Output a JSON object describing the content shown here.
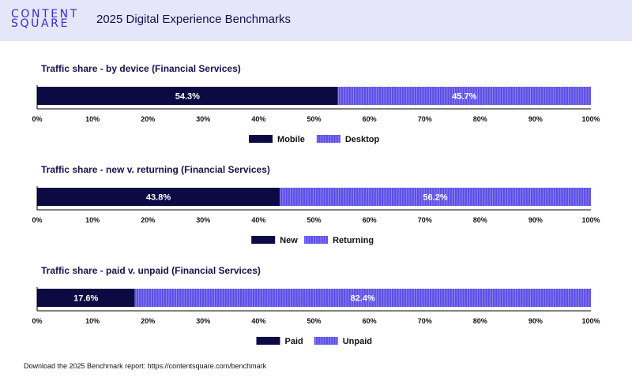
{
  "header": {
    "logo_line1": "CONTENT",
    "logo_line2": "SQUARE",
    "title": "2025 Digital Experience Benchmarks"
  },
  "colors": {
    "primary": "#0c0a42",
    "secondary": "#5b4de6",
    "stripe": "#8f86f0",
    "header_bg": "#e6e6fa",
    "brand": "#3b2ad0"
  },
  "chart_data": [
    {
      "type": "bar",
      "orientation": "horizontal-stacked-100",
      "title": "Traffic share - by device (Financial Services)",
      "series": [
        {
          "name": "Mobile",
          "values": [
            54.3
          ],
          "label": "54.3%"
        },
        {
          "name": "Desktop",
          "values": [
            45.7
          ],
          "label": "45.7%"
        }
      ],
      "xlim": [
        0,
        100
      ],
      "ticks": [
        "0%",
        "10%",
        "20%",
        "30%",
        "40%",
        "50%",
        "60%",
        "70%",
        "80%",
        "90%",
        "100%"
      ],
      "legend": "bottom-center"
    },
    {
      "type": "bar",
      "orientation": "horizontal-stacked-100",
      "title": "Traffic share - new v. returning (Financial Services)",
      "series": [
        {
          "name": "New",
          "values": [
            43.8
          ],
          "label": "43.8%"
        },
        {
          "name": "Returning",
          "values": [
            56.2
          ],
          "label": "56.2%"
        }
      ],
      "xlim": [
        0,
        100
      ],
      "ticks": [
        "0%",
        "10%",
        "20%",
        "30%",
        "40%",
        "50%",
        "60%",
        "70%",
        "80%",
        "90%",
        "100%"
      ],
      "legend": "bottom-center"
    },
    {
      "type": "bar",
      "orientation": "horizontal-stacked-100",
      "title": "Traffic share - paid v. unpaid (Financial Services)",
      "series": [
        {
          "name": "Paid",
          "values": [
            17.6
          ],
          "label": "17.6%"
        },
        {
          "name": "Unpaid",
          "values": [
            82.4
          ],
          "label": "82.4%"
        }
      ],
      "xlim": [
        0,
        100
      ],
      "ticks": [
        "0%",
        "10%",
        "20%",
        "30%",
        "40%",
        "50%",
        "60%",
        "70%",
        "80%",
        "90%",
        "100%"
      ],
      "legend": "bottom-center"
    }
  ],
  "footer": {
    "text": "Download the 2025 Benchmark report: https://contentsquare.com/benchmark"
  }
}
